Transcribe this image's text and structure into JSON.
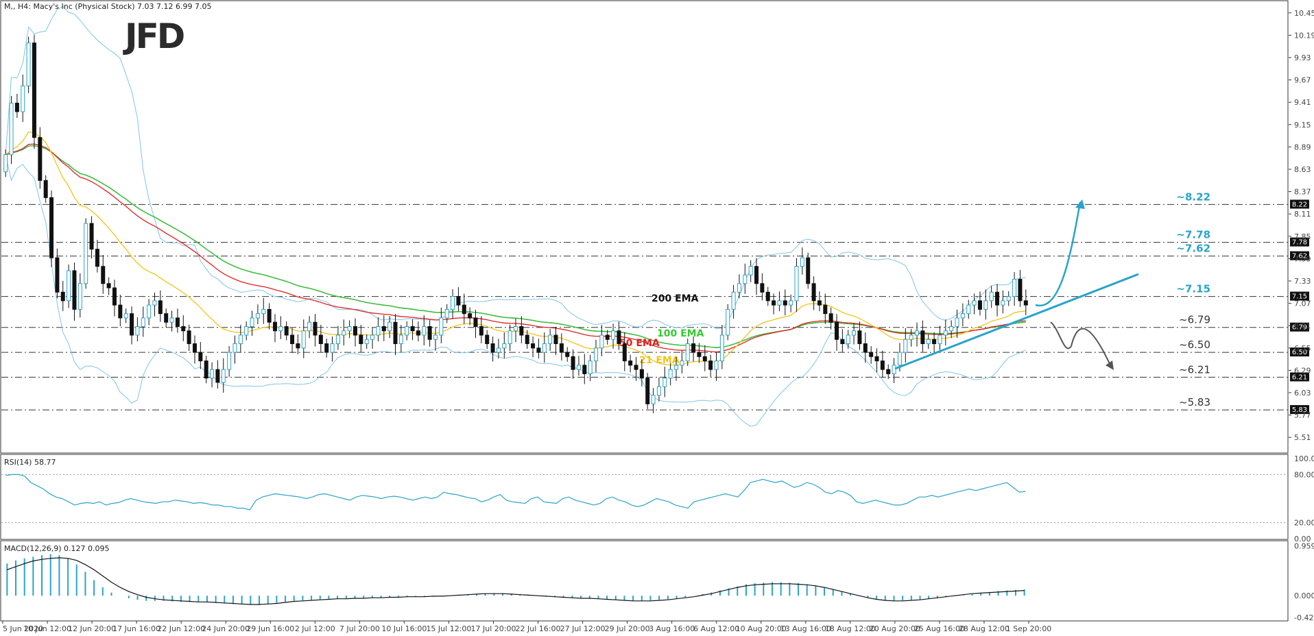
{
  "chart_data": [
    {
      "type": "candlestick",
      "title": "M,, H4:  Macy's Inc (Physical Stock)  7.03 7.12 6.99 7.05",
      "logo": "JFD",
      "y_ticks": [
        "10.45",
        "10.19",
        "9.93",
        "9.67",
        "9.41",
        "9.15",
        "8.89",
        "8.63",
        "8.37",
        "8.11",
        "7.85",
        "7.59",
        "7.33",
        "7.07",
        "6.81",
        "6.55",
        "6.29",
        "6.03",
        "5.77",
        "5.51"
      ],
      "ylim": [
        5.4,
        10.52
      ],
      "x_tick_labels": [
        "5 Jun 2020",
        "10 Jun 12:00",
        "12 Jun 20:00",
        "17 Jun 16:00",
        "22 Jun 12:00",
        "24 Jun 20:00",
        "29 Jun 16:00",
        "2 Jul 12:00",
        "7 Jul 20:00",
        "10 Jul 16:00",
        "15 Jul 12:00",
        "17 Jul 20:00",
        "22 Jul 16:00",
        "27 Jul 12:00",
        "29 Jul 20:00",
        "3 Aug 16:00",
        "6 Aug 12:00",
        "10 Aug 20:00",
        "13 Aug 16:00",
        "18 Aug 12:00",
        "20 Aug 20:00",
        "25 Aug 16:00",
        "28 Aug 12:00",
        "1 Sep 20:00"
      ],
      "closes": [
        8.8,
        9.4,
        9.3,
        9.6,
        10.1,
        9.0,
        8.5,
        8.3,
        7.6,
        7.2,
        7.1,
        7.45,
        7.0,
        7.3,
        8.0,
        7.7,
        7.5,
        7.3,
        7.25,
        7.05,
        6.9,
        6.95,
        6.7,
        6.8,
        6.9,
        7.05,
        7.1,
        6.95,
        6.85,
        6.9,
        6.8,
        6.75,
        6.6,
        6.5,
        6.4,
        6.2,
        6.3,
        6.15,
        6.3,
        6.5,
        6.6,
        6.7,
        6.8,
        6.9,
        6.95,
        7.0,
        6.85,
        6.75,
        6.8,
        6.7,
        6.6,
        6.55,
        6.75,
        6.85,
        6.7,
        6.6,
        6.5,
        6.6,
        6.7,
        6.75,
        6.8,
        6.7,
        6.6,
        6.65,
        6.7,
        6.8,
        6.75,
        6.85,
        6.6,
        6.7,
        6.8,
        6.75,
        6.7,
        6.8,
        6.65,
        6.7,
        6.9,
        7.0,
        7.15,
        7.05,
        6.95,
        6.9,
        6.8,
        6.7,
        6.6,
        6.5,
        6.55,
        6.6,
        6.75,
        6.8,
        6.7,
        6.6,
        6.55,
        6.5,
        6.6,
        6.7,
        6.6,
        6.5,
        6.45,
        6.3,
        6.35,
        6.25,
        6.4,
        6.55,
        6.7,
        6.65,
        6.75,
        6.6,
        6.4,
        6.35,
        6.3,
        6.2,
        5.9,
        6.0,
        6.1,
        6.2,
        6.3,
        6.35,
        6.4,
        6.6,
        6.5,
        6.45,
        6.4,
        6.3,
        6.4,
        6.7,
        7.0,
        7.2,
        7.3,
        7.4,
        7.5,
        7.3,
        7.2,
        7.1,
        7.05,
        7.1,
        7.05,
        7.1,
        7.5,
        7.6,
        7.3,
        7.1,
        7.05,
        6.95,
        6.85,
        6.65,
        6.6,
        6.7,
        6.75,
        6.6,
        6.5,
        6.45,
        6.4,
        6.3,
        6.25,
        6.35,
        6.5,
        6.65,
        6.7,
        6.75,
        6.6,
        6.65,
        6.6,
        6.7,
        6.75,
        6.8,
        6.9,
        6.95,
        7.05,
        7.1,
        7.0,
        7.1,
        7.2,
        7.05,
        7.1,
        7.15,
        7.35,
        7.1,
        7.05
      ],
      "levels": [
        {
          "value": 8.22,
          "label": "~8.22",
          "tag": "8.22",
          "color": "#29a3c9"
        },
        {
          "value": 7.78,
          "label": "~7.78",
          "tag": "7.78",
          "color": "#29a3c9"
        },
        {
          "value": 7.62,
          "label": "~7.62",
          "tag": "7.62",
          "color": "#29a3c9"
        },
        {
          "value": 7.15,
          "label": "~7.15",
          "tag": "7.15",
          "color": "#29a3c9"
        },
        {
          "value": 6.79,
          "label": "~6.79",
          "tag": "6.79",
          "color": "#333333"
        },
        {
          "value": 6.5,
          "label": "~6.50",
          "tag": "6.50",
          "color": "#333333"
        },
        {
          "value": 6.21,
          "label": "~6.21",
          "tag": "6.21",
          "color": "#333333"
        },
        {
          "value": 5.83,
          "label": "~5.83",
          "tag": "5.83",
          "color": "#333333"
        }
      ],
      "ema_labels": [
        {
          "name": "200 EMA",
          "color": "#111111"
        },
        {
          "name": "100 EMA",
          "color": "#33cc33"
        },
        {
          "name": "50 EMA",
          "color": "#e02020"
        },
        {
          "name": "21 EMA",
          "color": "#f0c419"
        }
      ],
      "colors": {
        "bull": "#ffffff",
        "bear": "#111111",
        "bollinger": "#7fc4e8",
        "level": "#29a3c9"
      }
    },
    {
      "type": "line",
      "title": "RSI(14) 58.77",
      "y_ticks": [
        "100.00",
        "80.00",
        "20.00",
        "0.00"
      ],
      "ylim": [
        0,
        100
      ],
      "reference_lines": [
        80,
        20
      ],
      "values": [
        79,
        80,
        80,
        78,
        70,
        66,
        62,
        56,
        52,
        50,
        46,
        42,
        44,
        45,
        44,
        46,
        42,
        44,
        45,
        48,
        50,
        48,
        46,
        45,
        44,
        46,
        46,
        48,
        47,
        46,
        44,
        45,
        44,
        42,
        42,
        40,
        40,
        38,
        38,
        36,
        48,
        52,
        54,
        56,
        55,
        54,
        53,
        52,
        50,
        52,
        55,
        56,
        54,
        52,
        50,
        48,
        52,
        54,
        53,
        52,
        50,
        52,
        53,
        52,
        50,
        48,
        50,
        52,
        50,
        52,
        58,
        56,
        55,
        53,
        51,
        50,
        46,
        48,
        52,
        55,
        48,
        46,
        45,
        44,
        50,
        52,
        46,
        45,
        44,
        50,
        52,
        48,
        46,
        44,
        42,
        44,
        50,
        52,
        48,
        46,
        42,
        40,
        42,
        46,
        50,
        48,
        46,
        42,
        40,
        38,
        46,
        48,
        50,
        52,
        54,
        56,
        54,
        52,
        60,
        70,
        72,
        74,
        72,
        70,
        72,
        68,
        64,
        66,
        70,
        68,
        64,
        58,
        56,
        60,
        58,
        54,
        46,
        44,
        46,
        48,
        46,
        44,
        42,
        42,
        44,
        48,
        52,
        52,
        54,
        52,
        54,
        56,
        58,
        60,
        62,
        60,
        62,
        64,
        66,
        68,
        70,
        64,
        58,
        59
      ]
    },
    {
      "type": "bar",
      "title": "MACD(12,26,9) 0.127 0.095",
      "y_ticks": [
        "0.959",
        "0.000",
        "-0.421"
      ],
      "ylim": [
        -0.46,
        0.98
      ],
      "histogram": [
        0.62,
        0.68,
        0.72,
        0.75,
        0.78,
        0.8,
        0.78,
        0.72,
        0.6,
        0.46,
        0.3,
        0.16,
        0.06,
        0.0,
        -0.05,
        -0.08,
        -0.1,
        -0.1,
        -0.1,
        -0.11,
        -0.12,
        -0.12,
        -0.12,
        -0.13,
        -0.14,
        -0.15,
        -0.16,
        -0.17,
        -0.17,
        -0.18,
        -0.16,
        -0.14,
        -0.12,
        -0.1,
        -0.09,
        -0.08,
        -0.07,
        -0.06,
        -0.06,
        -0.05,
        -0.05,
        -0.04,
        -0.04,
        -0.04,
        -0.03,
        -0.03,
        -0.03,
        -0.02,
        -0.02,
        -0.02,
        -0.01,
        0.0,
        0.01,
        0.02,
        0.03,
        0.04,
        0.05,
        0.05,
        0.04,
        0.03,
        0.01,
        0.0,
        -0.02,
        -0.03,
        -0.04,
        -0.05,
        -0.05,
        -0.05,
        -0.06,
        -0.07,
        -0.08,
        -0.09,
        -0.1,
        -0.1,
        -0.09,
        -0.08,
        -0.07,
        -0.05,
        -0.03,
        0.0,
        0.03,
        0.06,
        0.1,
        0.14,
        0.18,
        0.22,
        0.24,
        0.25,
        0.26,
        0.26,
        0.25,
        0.24,
        0.22,
        0.2,
        0.16,
        0.12,
        0.08,
        0.04,
        0.0,
        -0.04,
        -0.07,
        -0.1,
        -0.1,
        -0.09,
        -0.08,
        -0.07,
        -0.06,
        -0.05,
        -0.03,
        -0.01,
        0.01,
        0.03,
        0.05,
        0.07,
        0.09,
        0.1,
        0.11,
        0.12
      ],
      "signal": [
        0.5,
        0.56,
        0.62,
        0.67,
        0.7,
        0.72,
        0.73,
        0.72,
        0.68,
        0.6,
        0.5,
        0.38,
        0.26,
        0.16,
        0.08,
        0.02,
        -0.03,
        -0.06,
        -0.08,
        -0.09,
        -0.1,
        -0.11,
        -0.12,
        -0.12,
        -0.13,
        -0.14,
        -0.15,
        -0.16,
        -0.17,
        -0.17,
        -0.16,
        -0.15,
        -0.13,
        -0.11,
        -0.1,
        -0.09,
        -0.08,
        -0.07,
        -0.06,
        -0.06,
        -0.05,
        -0.05,
        -0.04,
        -0.04,
        -0.03,
        -0.03,
        -0.02,
        -0.02,
        -0.02,
        -0.01,
        -0.01,
        0.0,
        0.01,
        0.02,
        0.03,
        0.04,
        0.04,
        0.04,
        0.03,
        0.02,
        0.01,
        0.0,
        -0.01,
        -0.02,
        -0.03,
        -0.04,
        -0.05,
        -0.05,
        -0.06,
        -0.07,
        -0.08,
        -0.09,
        -0.1,
        -0.1,
        -0.1,
        -0.09,
        -0.08,
        -0.06,
        -0.04,
        -0.02,
        0.01,
        0.04,
        0.08,
        0.12,
        0.16,
        0.19,
        0.21,
        0.22,
        0.23,
        0.23,
        0.23,
        0.22,
        0.21,
        0.19,
        0.16,
        0.12,
        0.08,
        0.04,
        0.0,
        -0.04,
        -0.07,
        -0.09,
        -0.1,
        -0.1,
        -0.09,
        -0.08,
        -0.06,
        -0.04,
        -0.02,
        0.0,
        0.02,
        0.04,
        0.05,
        0.06,
        0.07,
        0.08,
        0.09,
        0.1
      ]
    }
  ]
}
